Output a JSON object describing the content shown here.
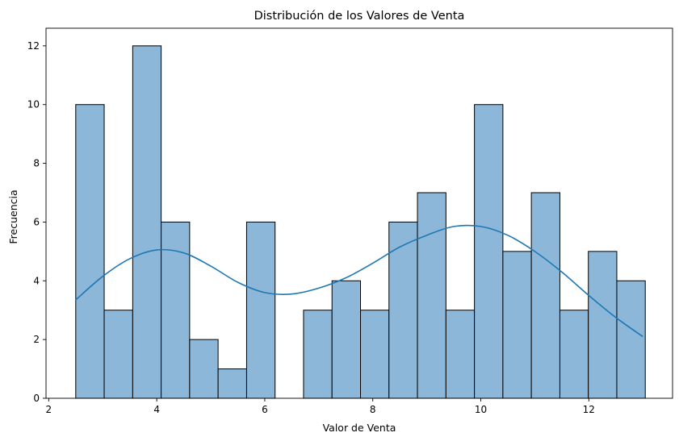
{
  "chart_data": {
    "type": "bar",
    "title": "Distribución de los Valores de Venta",
    "xlabel": "Valor de Venta",
    "ylabel": "Frecuencia",
    "xlim": [
      1.95,
      13.55
    ],
    "ylim": [
      0,
      12.6
    ],
    "x_ticks": [
      "2",
      "4",
      "6",
      "8",
      "10",
      "12"
    ],
    "y_ticks": [
      "0",
      "2",
      "4",
      "6",
      "8",
      "10",
      "12"
    ],
    "grid": false,
    "bar_color": "#8cb7d9",
    "edge_color": "#000000",
    "kde_color": "#1f77b4",
    "bins": [
      {
        "x0": 2.5,
        "x1": 3.027,
        "count": 10
      },
      {
        "x0": 3.027,
        "x1": 3.555,
        "count": 3
      },
      {
        "x0": 3.555,
        "x1": 4.082,
        "count": 12
      },
      {
        "x0": 4.082,
        "x1": 4.609,
        "count": 6
      },
      {
        "x0": 4.609,
        "x1": 5.136,
        "count": 2
      },
      {
        "x0": 5.136,
        "x1": 5.664,
        "count": 1
      },
      {
        "x0": 5.664,
        "x1": 6.191,
        "count": 6
      },
      {
        "x0": 6.191,
        "x1": 6.718,
        "count": 0
      },
      {
        "x0": 6.718,
        "x1": 7.245,
        "count": 3
      },
      {
        "x0": 7.245,
        "x1": 7.773,
        "count": 4
      },
      {
        "x0": 7.773,
        "x1": 8.3,
        "count": 3
      },
      {
        "x0": 8.3,
        "x1": 8.827,
        "count": 6
      },
      {
        "x0": 8.827,
        "x1": 9.355,
        "count": 7
      },
      {
        "x0": 9.355,
        "x1": 9.882,
        "count": 3
      },
      {
        "x0": 9.882,
        "x1": 10.409,
        "count": 10
      },
      {
        "x0": 10.409,
        "x1": 10.936,
        "count": 5
      },
      {
        "x0": 10.936,
        "x1": 11.464,
        "count": 7
      },
      {
        "x0": 11.464,
        "x1": 11.991,
        "count": 3
      },
      {
        "x0": 11.991,
        "x1": 12.518,
        "count": 5
      },
      {
        "x0": 12.518,
        "x1": 13.045,
        "count": 4
      }
    ],
    "kde": {
      "x": [
        2.5,
        3.0,
        3.5,
        4.0,
        4.5,
        5.0,
        5.5,
        6.0,
        6.5,
        7.0,
        7.5,
        8.0,
        8.5,
        9.0,
        9.5,
        10.0,
        10.5,
        11.0,
        11.5,
        12.0,
        12.5,
        13.0
      ],
      "y": [
        3.35,
        4.15,
        4.75,
        5.05,
        4.95,
        4.5,
        3.95,
        3.6,
        3.55,
        3.75,
        4.1,
        4.6,
        5.15,
        5.55,
        5.85,
        5.85,
        5.55,
        5.0,
        4.3,
        3.5,
        2.75,
        2.1
      ]
    }
  }
}
